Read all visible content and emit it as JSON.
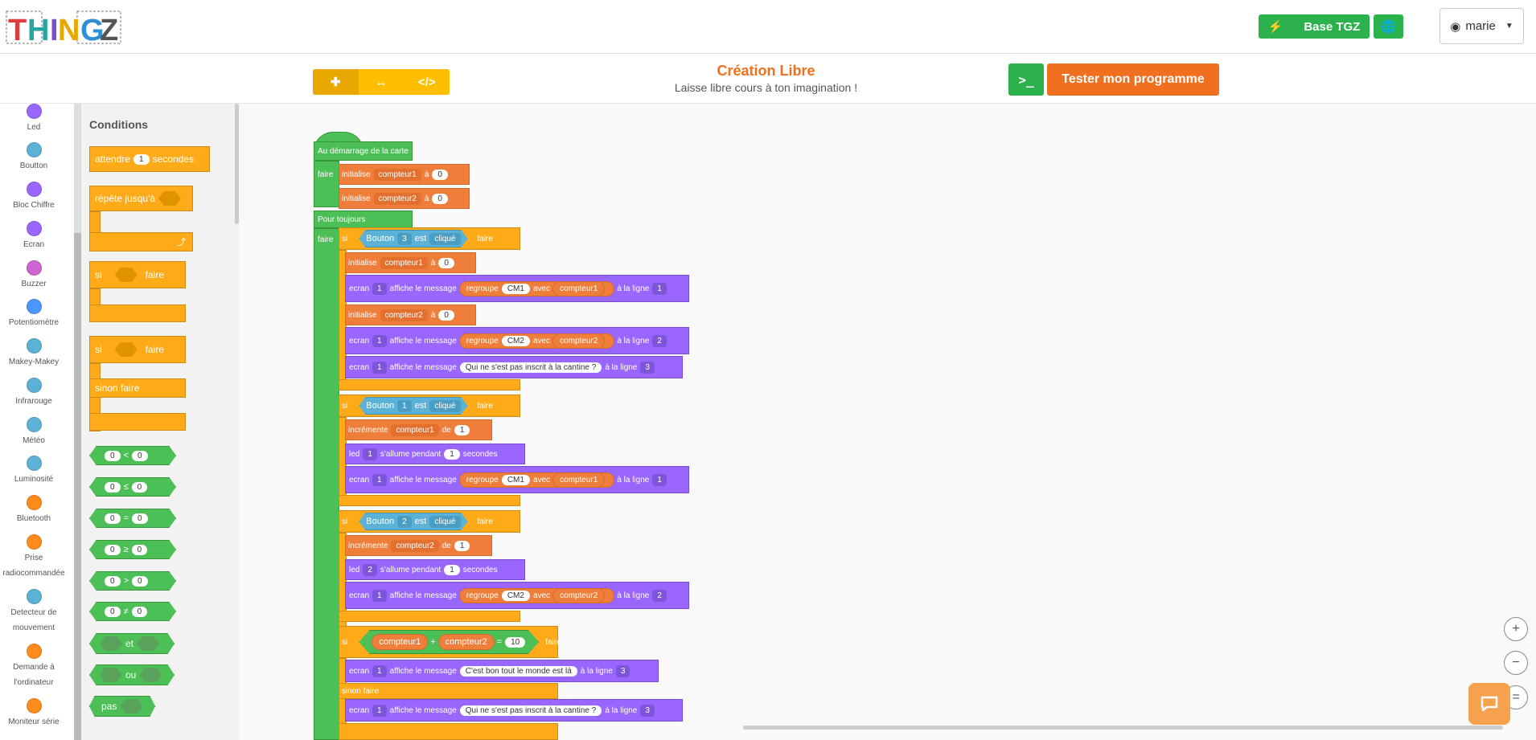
{
  "logo": {
    "text": "THINGZ"
  },
  "header": {
    "base_label": "Base TGZ",
    "user_name": "marie"
  },
  "project": {
    "title": "Création Libre",
    "subtitle": "Laisse libre cours à ton imagination !"
  },
  "actions": {
    "test_label": "Tester mon programme",
    "terminal_label": ">_"
  },
  "categories": [
    {
      "label": "Led",
      "color": "#9966ff"
    },
    {
      "label": "Boutton",
      "color": "#5cb1d6"
    },
    {
      "label": "Bloc Chiffre",
      "color": "#9966ff"
    },
    {
      "label": "Ecran",
      "color": "#9966ff"
    },
    {
      "label": "Buzzer",
      "color": "#cf63cf"
    },
    {
      "label": "Potentiomètre",
      "color": "#4c97ff"
    },
    {
      "label": "Makey-Makey",
      "color": "#5cb1d6"
    },
    {
      "label": "Infrarouge",
      "color": "#5cb1d6"
    },
    {
      "label": "Météo",
      "color": "#5cb1d6"
    },
    {
      "label": "Luminosité",
      "color": "#5cb1d6"
    },
    {
      "label": "Bluetooth",
      "color": "#ff8c1a"
    },
    {
      "label": "Prise radiocommandée",
      "color": "#ff8c1a"
    },
    {
      "label": "Detecteur de mouvement",
      "color": "#5cb1d6"
    },
    {
      "label": "Demande à l'ordinateur",
      "color": "#ff8c1a"
    },
    {
      "label": "Moniteur série",
      "color": "#ff8c1a"
    }
  ],
  "flyout": {
    "title": "Conditions",
    "wait": {
      "l1": "attendre",
      "v": "1",
      "l2": "secondes"
    },
    "repeat_until": "répète jusqu'à",
    "if1": {
      "si": "si",
      "faire": "faire"
    },
    "if2": {
      "si": "si",
      "faire": "faire",
      "sinon": "sinon faire"
    },
    "compares": [
      {
        "a": "0",
        "op": "<",
        "b": "0"
      },
      {
        "a": "0",
        "op": "≤",
        "b": "0"
      },
      {
        "a": "0",
        "op": "=",
        "b": "0"
      },
      {
        "a": "0",
        "op": "≥",
        "b": "0"
      },
      {
        "a": "0",
        "op": ">",
        "b": "0"
      },
      {
        "a": "0",
        "op": "≠",
        "b": "0"
      }
    ],
    "and": "et",
    "or": "ou",
    "not": "pas"
  },
  "program": {
    "start": "Au démarrage de la carte",
    "faire": "faire",
    "forever": "Pour toujours",
    "init": "initialise",
    "a": "à",
    "zero": "0",
    "cpt1": "compteur1",
    "cpt2": "compteur2",
    "si": "si",
    "bouton": "Bouton",
    "est": "est",
    "clique": "cliqué",
    "ecran": "ecran",
    "affiche": "affiche le message",
    "regroupe": "regroupe",
    "avec": "avec",
    "ligne": "à la ligne",
    "cm1": "CM1",
    "cm2": "CM2",
    "cantine": "Qui ne s'est pas inscrit à la cantine ?",
    "increment": "incrémente",
    "de": "de",
    "led": "led",
    "allume": "s'allume pendant",
    "secondes": "secondes",
    "plus": "+",
    "eq": "=",
    "ten": "10",
    "bonmonde": "C'est bon tout le monde est là",
    "sinon": "sinon faire",
    "n1": "1",
    "n2": "2",
    "n3": "3"
  },
  "zoom": {
    "in": "+",
    "out": "−",
    "reset": "="
  }
}
